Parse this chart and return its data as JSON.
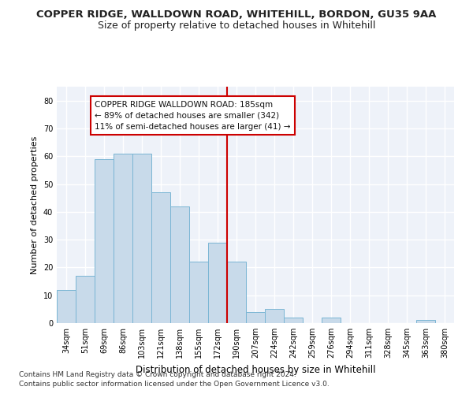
{
  "title_line1": "COPPER RIDGE, WALLDOWN ROAD, WHITEHILL, BORDON, GU35 9AA",
  "title_line2": "Size of property relative to detached houses in Whitehill",
  "xlabel": "Distribution of detached houses by size in Whitehill",
  "ylabel": "Number of detached properties",
  "categories": [
    "34sqm",
    "51sqm",
    "69sqm",
    "86sqm",
    "103sqm",
    "121sqm",
    "138sqm",
    "155sqm",
    "172sqm",
    "190sqm",
    "207sqm",
    "224sqm",
    "242sqm",
    "259sqm",
    "276sqm",
    "294sqm",
    "311sqm",
    "328sqm",
    "345sqm",
    "363sqm",
    "380sqm"
  ],
  "values": [
    12,
    17,
    59,
    61,
    61,
    47,
    42,
    22,
    29,
    22,
    4,
    5,
    2,
    0,
    2,
    0,
    0,
    0,
    0,
    1,
    0
  ],
  "bar_color": "#c8daea",
  "bar_edge_color": "#7ab5d4",
  "vline_color": "#cc0000",
  "ann_text_line1": "COPPER RIDGE WALLDOWN ROAD: 185sqm",
  "ann_text_line2": "← 89% of detached houses are smaller (342)",
  "ann_text_line3": "11% of semi-detached houses are larger (41) →",
  "ylim": [
    0,
    85
  ],
  "yticks": [
    0,
    10,
    20,
    30,
    40,
    50,
    60,
    70,
    80
  ],
  "bg_color": "#eef2f9",
  "grid_color": "#ffffff",
  "footer_line1": "Contains HM Land Registry data © Crown copyright and database right 2024.",
  "footer_line2": "Contains public sector information licensed under the Open Government Licence v3.0.",
  "title_fontsize": 9.5,
  "subtitle_fontsize": 9,
  "ylabel_fontsize": 8,
  "xlabel_fontsize": 8.5,
  "tick_fontsize": 7,
  "ann_fontsize": 7.5,
  "footer_fontsize": 6.5
}
